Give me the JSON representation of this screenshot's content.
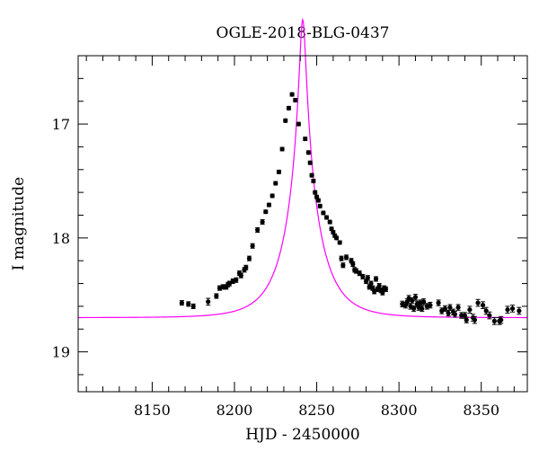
{
  "chart_data": {
    "type": "scatter",
    "title": "OGLE-2018-BLG-0437",
    "xlabel": "HJD - 2450000",
    "ylabel": "I magnitude",
    "xlim": [
      8105,
      8378
    ],
    "ylim": [
      19.35,
      16.4
    ],
    "y_inverted": true,
    "grid": false,
    "x_ticks": [
      8150,
      8200,
      8250,
      8300,
      8350
    ],
    "y_ticks": [
      17,
      18,
      19
    ],
    "colors": {
      "model": "#ff00ff",
      "points": "#000000",
      "axes": "#000000"
    },
    "series": [
      {
        "type": "scatter",
        "x": [
          8168,
          8172,
          8175,
          8184,
          8189,
          8191,
          8193,
          8195,
          8196,
          8197,
          8199,
          8201,
          8203,
          8204,
          8206,
          8207,
          8209,
          8211,
          8214,
          8217,
          8219,
          8221,
          8223,
          8225,
          8227,
          8229,
          8231,
          8233,
          8235,
          8237,
          8239,
          8243,
          8245,
          8246,
          8247,
          8248,
          8249,
          8250,
          8251,
          8252,
          8254,
          8256,
          8258,
          8259,
          8260,
          8261,
          8262,
          8264,
          8265,
          8266,
          8268,
          8271,
          8272,
          8273,
          8274,
          8276,
          8278,
          8280,
          8281,
          8282,
          8283,
          8284,
          8285,
          8286,
          8287,
          8288,
          8289,
          8290,
          8291,
          8292,
          8302,
          8304,
          8305,
          8306,
          8307,
          8308,
          8309,
          8310,
          8311,
          8312,
          8313,
          8314,
          8315,
          8317,
          8319,
          8324,
          8326,
          8328,
          8330,
          8331,
          8333,
          8334,
          8336,
          8338,
          8340,
          8341,
          8343,
          8345,
          8346,
          8348,
          8351,
          8353,
          8355,
          8358,
          8361,
          8362,
          8366,
          8369,
          8373
        ],
        "y": [
          18.57,
          18.58,
          18.6,
          18.56,
          18.51,
          18.44,
          18.43,
          18.43,
          18.41,
          18.4,
          18.38,
          18.37,
          18.31,
          18.33,
          18.28,
          18.26,
          18.18,
          18.07,
          17.93,
          17.86,
          17.77,
          17.71,
          17.63,
          17.52,
          17.42,
          17.22,
          16.97,
          16.86,
          16.74,
          16.79,
          17.0,
          17.13,
          17.25,
          17.34,
          17.45,
          17.5,
          17.6,
          17.64,
          17.67,
          17.72,
          17.78,
          17.82,
          17.86,
          17.92,
          17.95,
          17.98,
          18.0,
          18.04,
          18.18,
          18.24,
          18.17,
          18.2,
          18.23,
          18.28,
          18.29,
          18.31,
          18.34,
          18.38,
          18.35,
          18.43,
          18.4,
          18.44,
          18.47,
          18.36,
          18.45,
          18.42,
          18.46,
          18.48,
          18.44,
          18.45,
          18.58,
          18.59,
          18.56,
          18.53,
          18.6,
          18.55,
          18.62,
          18.52,
          18.58,
          18.61,
          18.57,
          18.62,
          18.56,
          18.6,
          18.59,
          18.57,
          18.64,
          18.62,
          18.66,
          18.61,
          18.65,
          18.67,
          18.61,
          18.68,
          18.68,
          18.72,
          18.63,
          18.7,
          18.72,
          18.57,
          18.59,
          18.64,
          18.68,
          18.73,
          18.73,
          18.72,
          18.63,
          18.62,
          18.64
        ],
        "errors": [
          0.02,
          0.02,
          0.02,
          0.03,
          0.02,
          0.02,
          0.02,
          0.02,
          0.02,
          0.02,
          0.02,
          0.02,
          0.02,
          0.02,
          0.02,
          0.02,
          0.02,
          0.02,
          0.02,
          0.02,
          0.015,
          0.015,
          0.015,
          0.015,
          0.015,
          0.015,
          0.015,
          0.015,
          0.015,
          0.015,
          0.015,
          0.015,
          0.015,
          0.015,
          0.015,
          0.015,
          0.015,
          0.015,
          0.015,
          0.015,
          0.015,
          0.015,
          0.015,
          0.015,
          0.015,
          0.015,
          0.015,
          0.015,
          0.02,
          0.02,
          0.02,
          0.02,
          0.02,
          0.02,
          0.02,
          0.02,
          0.02,
          0.02,
          0.02,
          0.02,
          0.02,
          0.02,
          0.02,
          0.02,
          0.02,
          0.02,
          0.02,
          0.02,
          0.02,
          0.02,
          0.025,
          0.025,
          0.025,
          0.025,
          0.025,
          0.025,
          0.025,
          0.025,
          0.025,
          0.025,
          0.025,
          0.025,
          0.025,
          0.025,
          0.025,
          0.025,
          0.025,
          0.025,
          0.025,
          0.025,
          0.025,
          0.025,
          0.025,
          0.025,
          0.025,
          0.025,
          0.03,
          0.03,
          0.03,
          0.03,
          0.03,
          0.03,
          0.03,
          0.03,
          0.03,
          0.03,
          0.03,
          0.03,
          0.03
        ]
      },
      {
        "type": "line",
        "model": "point-lens",
        "t0": 8241.5,
        "tE": 20,
        "u0": 0.09,
        "baseline_mag": 18.7
      }
    ]
  }
}
